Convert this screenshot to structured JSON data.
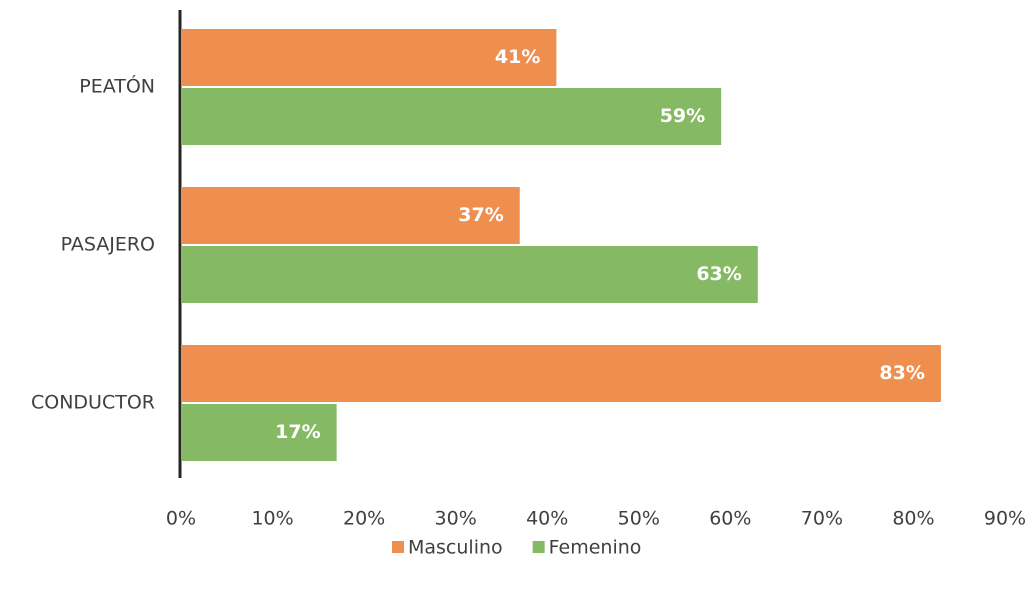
{
  "chart_data": {
    "type": "bar",
    "orientation": "horizontal",
    "categories": [
      "PEATÓN",
      "PASAJERO",
      "CONDUCTOR"
    ],
    "series": [
      {
        "name": "Masculino",
        "color": "#ef8f4f",
        "values": [
          41,
          37,
          83
        ],
        "value_labels": [
          "41%",
          "37%",
          "83%"
        ]
      },
      {
        "name": "Femenino",
        "color": "#86b963",
        "values": [
          59,
          63,
          17
        ],
        "value_labels": [
          "59%",
          "63%",
          "17%"
        ]
      }
    ],
    "xlim": [
      0,
      90
    ],
    "xticks": [
      {
        "value": 0,
        "label": "0%"
      },
      {
        "value": 10,
        "label": "10%"
      },
      {
        "value": 20,
        "label": "20%"
      },
      {
        "value": 30,
        "label": "30%"
      },
      {
        "value": 40,
        "label": "40%"
      },
      {
        "value": 50,
        "label": "50%"
      },
      {
        "value": 60,
        "label": "60%"
      },
      {
        "value": 70,
        "label": "70%"
      },
      {
        "value": 80,
        "label": "80%"
      },
      {
        "value": 90,
        "label": "90%"
      }
    ],
    "grid": false,
    "legend": "bottom"
  }
}
